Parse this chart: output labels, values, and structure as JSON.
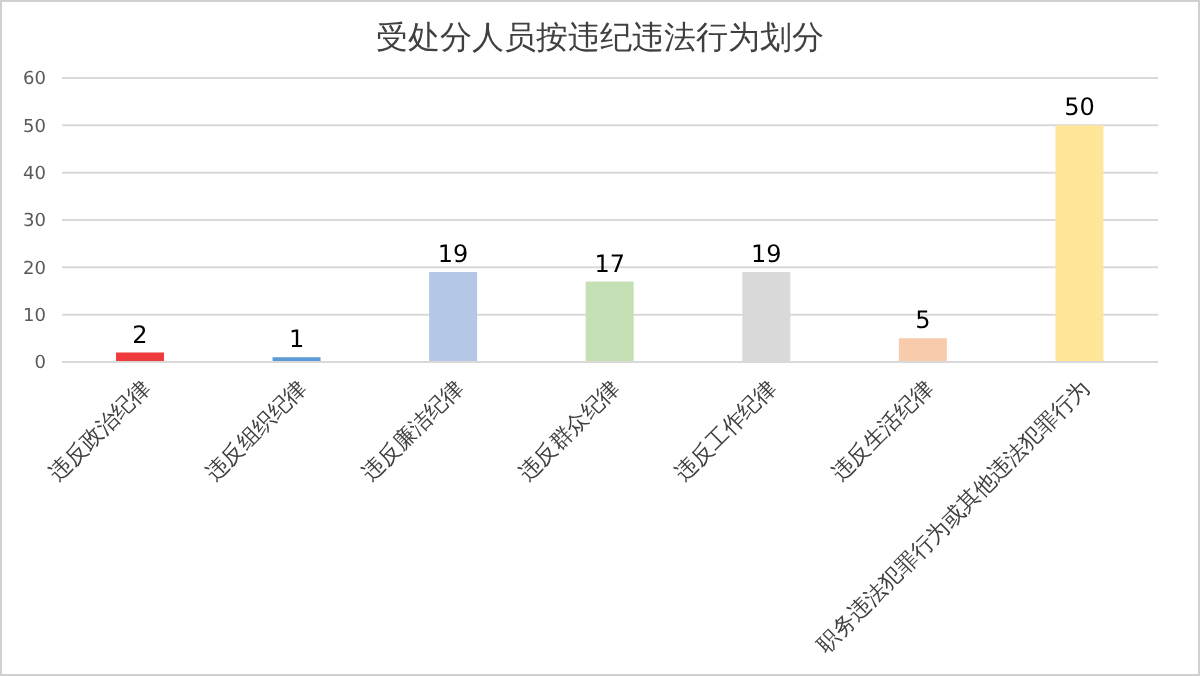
{
  "chart_data": {
    "type": "bar",
    "title": "受处分人员按违纪违法行为划分",
    "categories": [
      "违反政治纪律",
      "违反组织纪律",
      "违反廉洁纪律",
      "违反群众纪律",
      "违反工作纪律",
      "违反生活纪律",
      "职务违法犯罪行为或其他违法犯罪行为"
    ],
    "values": [
      2,
      1,
      19,
      17,
      19,
      5,
      50
    ],
    "colors": [
      "#ee3b3b",
      "#5b9bd5",
      "#b4c7e7",
      "#c5e0b4",
      "#d9d9d9",
      "#f8cbad",
      "#ffe699"
    ],
    "ylim": [
      0,
      60
    ],
    "yticks": [
      0,
      10,
      20,
      30,
      40,
      50,
      60
    ],
    "grid": "y",
    "data_labels": true,
    "legend": false
  }
}
